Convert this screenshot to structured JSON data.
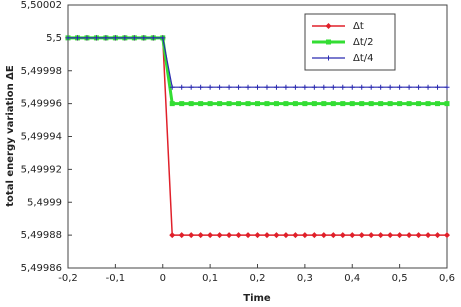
{
  "chart_data": {
    "type": "line",
    "x_label": "Time",
    "y_label": "total energy variation ΔE",
    "x": [
      -0.2,
      -0.18,
      -0.16,
      -0.14,
      -0.12,
      -0.1,
      -0.08,
      -0.06,
      -0.04,
      -0.02,
      0,
      0.02,
      0.04,
      0.06,
      0.08,
      0.1,
      0.12,
      0.14,
      0.16,
      0.18,
      0.2,
      0.22,
      0.24,
      0.26,
      0.28,
      0.3,
      0.32,
      0.34,
      0.36,
      0.38,
      0.4,
      0.42,
      0.44,
      0.46,
      0.48,
      0.5,
      0.52,
      0.54,
      0.56,
      0.58,
      0.6
    ],
    "series": [
      {
        "name": "Δt",
        "color": "#e0202a",
        "marker": "diamond",
        "width": 1.5,
        "values": [
          5.5,
          5.5,
          5.5,
          5.5,
          5.5,
          5.5,
          5.5,
          5.5,
          5.5,
          5.5,
          5.5,
          5.49988,
          5.49988,
          5.49988,
          5.49988,
          5.49988,
          5.49988,
          5.49988,
          5.49988,
          5.49988,
          5.49988,
          5.49988,
          5.49988,
          5.49988,
          5.49988,
          5.49988,
          5.49988,
          5.49988,
          5.49988,
          5.49988,
          5.49988,
          5.49988,
          5.49988,
          5.49988,
          5.49988,
          5.49988,
          5.49988,
          5.49988,
          5.49988,
          5.49988,
          5.49988
        ]
      },
      {
        "name": "Δt/2",
        "color": "#33dd33",
        "marker": "square",
        "width": 3,
        "values": [
          5.5,
          5.5,
          5.5,
          5.5,
          5.5,
          5.5,
          5.5,
          5.5,
          5.5,
          5.5,
          5.5,
          5.49996,
          5.49996,
          5.49996,
          5.49996,
          5.49996,
          5.49996,
          5.49996,
          5.49996,
          5.49996,
          5.49996,
          5.49996,
          5.49996,
          5.49996,
          5.49996,
          5.49996,
          5.49996,
          5.49996,
          5.49996,
          5.49996,
          5.49996,
          5.49996,
          5.49996,
          5.49996,
          5.49996,
          5.49996,
          5.49996,
          5.49996,
          5.49996,
          5.49996,
          5.49996
        ]
      },
      {
        "name": "Δt/4",
        "color": "#2a2ab0",
        "marker": "plus",
        "width": 1.2,
        "values": [
          5.5,
          5.5,
          5.5,
          5.5,
          5.5,
          5.5,
          5.5,
          5.5,
          5.5,
          5.5,
          5.5,
          5.49997,
          5.49997,
          5.49997,
          5.49997,
          5.49997,
          5.49997,
          5.49997,
          5.49997,
          5.49997,
          5.49997,
          5.49997,
          5.49997,
          5.49997,
          5.49997,
          5.49997,
          5.49997,
          5.49997,
          5.49997,
          5.49997,
          5.49997,
          5.49997,
          5.49997,
          5.49997,
          5.49997,
          5.49997,
          5.49997,
          5.49997,
          5.49997,
          5.49997,
          5.49997
        ]
      }
    ],
    "xlim": [
      -0.2,
      0.6
    ],
    "xticks": [
      {
        "value": -0.2,
        "label": "-0,2"
      },
      {
        "value": -0.1,
        "label": "-0,1"
      },
      0,
      {
        "value": 0.1,
        "label": "0,1"
      },
      {
        "value": 0.2,
        "label": "0,2"
      },
      {
        "value": 0.3,
        "label": "0,3"
      },
      {
        "value": 0.4,
        "label": "0,4"
      },
      {
        "value": 0.5,
        "label": "0,5"
      },
      {
        "value": 0.6,
        "label": "0,6"
      }
    ],
    "ylim": [
      5.49986,
      5.50002
    ],
    "yticks": [
      {
        "value": 5.49986,
        "label": "5,49986"
      },
      {
        "value": 5.49988,
        "label": "5,49988"
      },
      {
        "value": 5.4999,
        "label": "5,4999"
      },
      {
        "value": 5.49992,
        "label": "5,49992"
      },
      {
        "value": 5.49994,
        "label": "5,49994"
      },
      {
        "value": 5.49996,
        "label": "5,49996"
      },
      {
        "value": 5.49998,
        "label": "5,49998"
      },
      {
        "value": 5.5,
        "label": "5,5"
      },
      {
        "value": 5.50002,
        "label": "5,50002"
      }
    ],
    "grid": false,
    "legend": "upper right"
  }
}
